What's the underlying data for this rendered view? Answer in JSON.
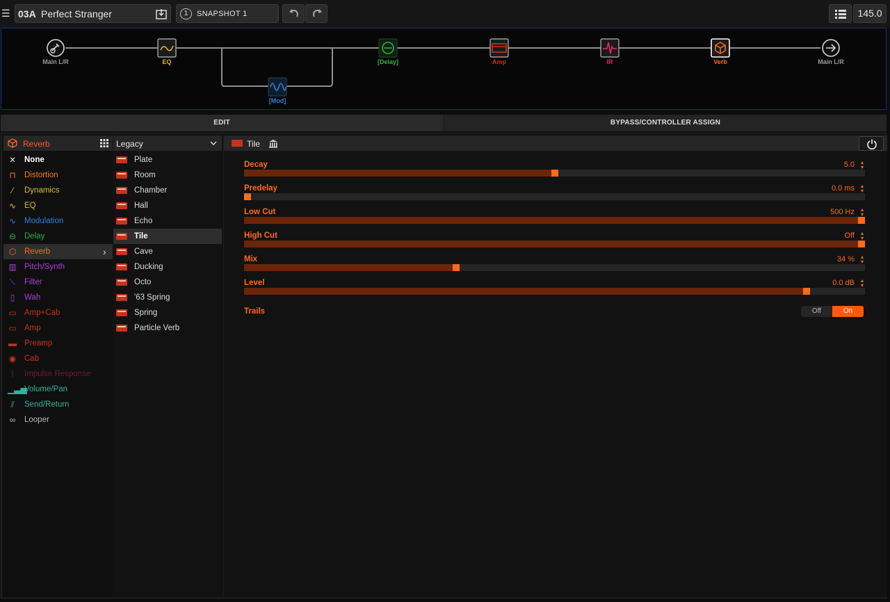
{
  "topbar": {
    "preset_number": "03A",
    "preset_name": "Perfect Stranger",
    "snapshot_number": "1",
    "snapshot_label": "SNAPSHOT 1",
    "tempo": "145.0"
  },
  "signal_flow": {
    "nodes": [
      {
        "label": "Main L/R",
        "color": "#9a9a9a",
        "icon": "guitar-input-icon"
      },
      {
        "label": "EQ",
        "color": "#d9b827",
        "icon": "eq-icon"
      },
      {
        "label": "[Mod]",
        "color": "#2f7fd8",
        "icon": "modulation-icon"
      },
      {
        "label": "[Delay]",
        "color": "#2cb34a",
        "icon": "delay-icon"
      },
      {
        "label": "Amp",
        "color": "#c8321e",
        "icon": "amp-icon"
      },
      {
        "label": "IR",
        "color": "#e0286e",
        "icon": "impulse-response-icon"
      },
      {
        "label": "Verb",
        "color": "#ff6a1a",
        "icon": "reverb-cube-icon"
      },
      {
        "label": "Main L/R",
        "color": "#9a9a9a",
        "icon": "output-arrow-icon"
      }
    ]
  },
  "tabs": {
    "edit": "EDIT",
    "bypass": "BYPASS/CONTROLLER ASSIGN"
  },
  "categories": {
    "header": "Reverb",
    "items": [
      {
        "label": "None",
        "color": "#ffffff"
      },
      {
        "label": "Distortion",
        "color": "#ff7a1a"
      },
      {
        "label": "Dynamics",
        "color": "#d9c027"
      },
      {
        "label": "EQ",
        "color": "#d9c027"
      },
      {
        "label": "Modulation",
        "color": "#2f7fd8"
      },
      {
        "label": "Delay",
        "color": "#2cb34a"
      },
      {
        "label": "Reverb",
        "color": "#ff6a1a"
      },
      {
        "label": "Pitch/Synth",
        "color": "#a640d8"
      },
      {
        "label": "Filter",
        "color": "#a640d8"
      },
      {
        "label": "Wah",
        "color": "#a640d8"
      },
      {
        "label": "Amp+Cab",
        "color": "#c8321e"
      },
      {
        "label": "Amp",
        "color": "#c8321e"
      },
      {
        "label": "Preamp",
        "color": "#c8321e"
      },
      {
        "label": "Cab",
        "color": "#c8321e"
      },
      {
        "label": "Impulse Response",
        "color": "#6b1d38"
      },
      {
        "label": "Volume/Pan",
        "color": "#2fb5a0"
      },
      {
        "label": "Send/Return",
        "color": "#2fb5a0"
      },
      {
        "label": "Looper",
        "color": "#bbbbbb"
      }
    ]
  },
  "models": {
    "header": "Legacy",
    "items": [
      "Plate",
      "Room",
      "Chamber",
      "Hall",
      "Echo",
      "Tile",
      "Cave",
      "Ducking",
      "Octo",
      "'63 Spring",
      "Spring",
      "Particle Verb"
    ],
    "selected": "Tile"
  },
  "params": {
    "block_name": "Tile",
    "items": [
      {
        "name": "Decay",
        "value": "5.0",
        "level": 0.5
      },
      {
        "name": "Predelay",
        "value": "0.0 ms",
        "level": 0.0
      },
      {
        "name": "Low Cut",
        "value": "500 Hz",
        "level": 1.0
      },
      {
        "name": "High Cut",
        "value": "Off",
        "level": 1.0
      },
      {
        "name": "Mix",
        "value": "34 %",
        "level": 0.34
      },
      {
        "name": "Level",
        "value": "0.0 dB",
        "level": 0.91
      }
    ],
    "trails": {
      "name": "Trails",
      "off": "Off",
      "on": "On",
      "state": "On"
    }
  }
}
